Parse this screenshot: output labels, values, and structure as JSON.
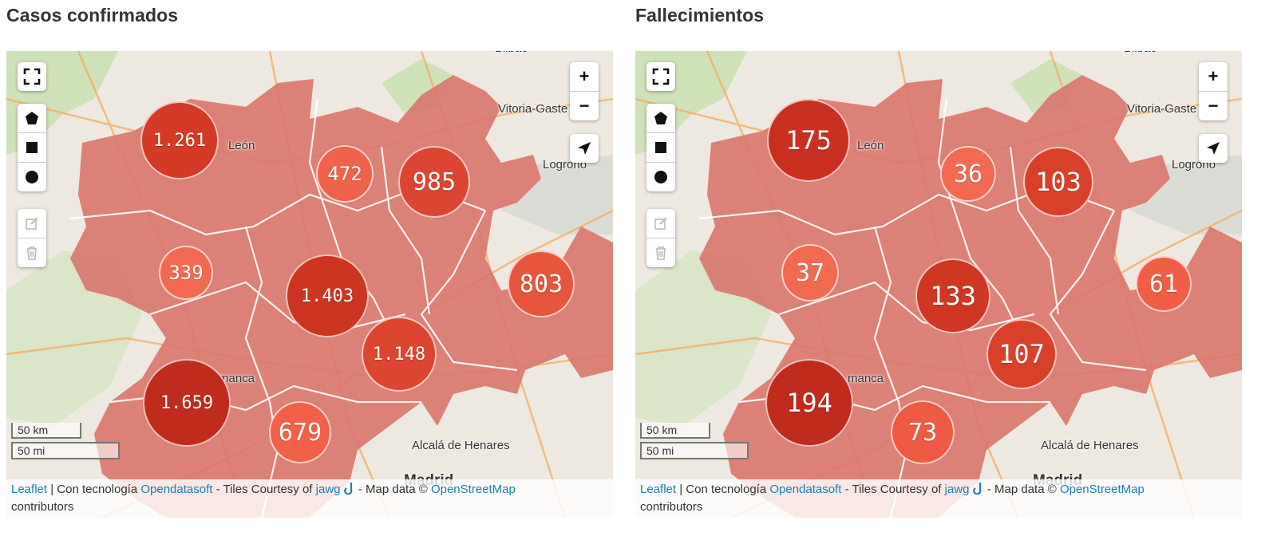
{
  "panels": [
    {
      "title": "Casos confirmados",
      "clusters": [
        "1.261",
        "472",
        "985",
        "339",
        "1.403",
        "803",
        "1.148",
        "1.659",
        "679"
      ],
      "cluster_colors": [
        "#d43a25",
        "#f0634a",
        "#dc4530",
        "#f26a50",
        "#cb3522",
        "#e8553d",
        "#dc4530",
        "#bf2b1c",
        "#f06148"
      ]
    },
    {
      "title": "Fallecimientos",
      "clusters": [
        "175",
        "36",
        "103",
        "37",
        "133",
        "61",
        "107",
        "194",
        "73"
      ],
      "cluster_colors": [
        "#c93020",
        "#f26a50",
        "#d94029",
        "#f26a50",
        "#cf3723",
        "#f05e45",
        "#d94029",
        "#bf2b1c",
        "#ee5a42"
      ]
    }
  ],
  "map": {
    "cities": [
      "León",
      "Vitoria-Gaste",
      "Logroño",
      "Bilbao",
      "manca",
      "Alcalá de Henares",
      "Madrid"
    ],
    "scale_km": "50 km",
    "scale_mi": "50 mi",
    "attribution": {
      "leaflet": "Leaflet",
      "sep1": " | Con tecnología ",
      "opendatasoft": "Opendatasoft",
      "tiles": " - Tiles Courtesy of ",
      "jawg": "jawg",
      "mapdata": " - Map data © ",
      "osm": "OpenStreetMap",
      "contributors": "contributors"
    }
  },
  "controls": {
    "fullscreen_icon": "fullscreen-icon",
    "draw_icons": [
      "polygon-icon",
      "rectangle-icon",
      "circle-icon"
    ],
    "edit_icons": [
      "edit-icon",
      "trash-icon"
    ],
    "zoom_in": "+",
    "zoom_out": "−",
    "locate_icon": "locate-arrow-icon"
  },
  "colors": {
    "region_fill": "#d9776c",
    "region_border": "#ffffff",
    "attribution_link": "#1a7fb5"
  }
}
